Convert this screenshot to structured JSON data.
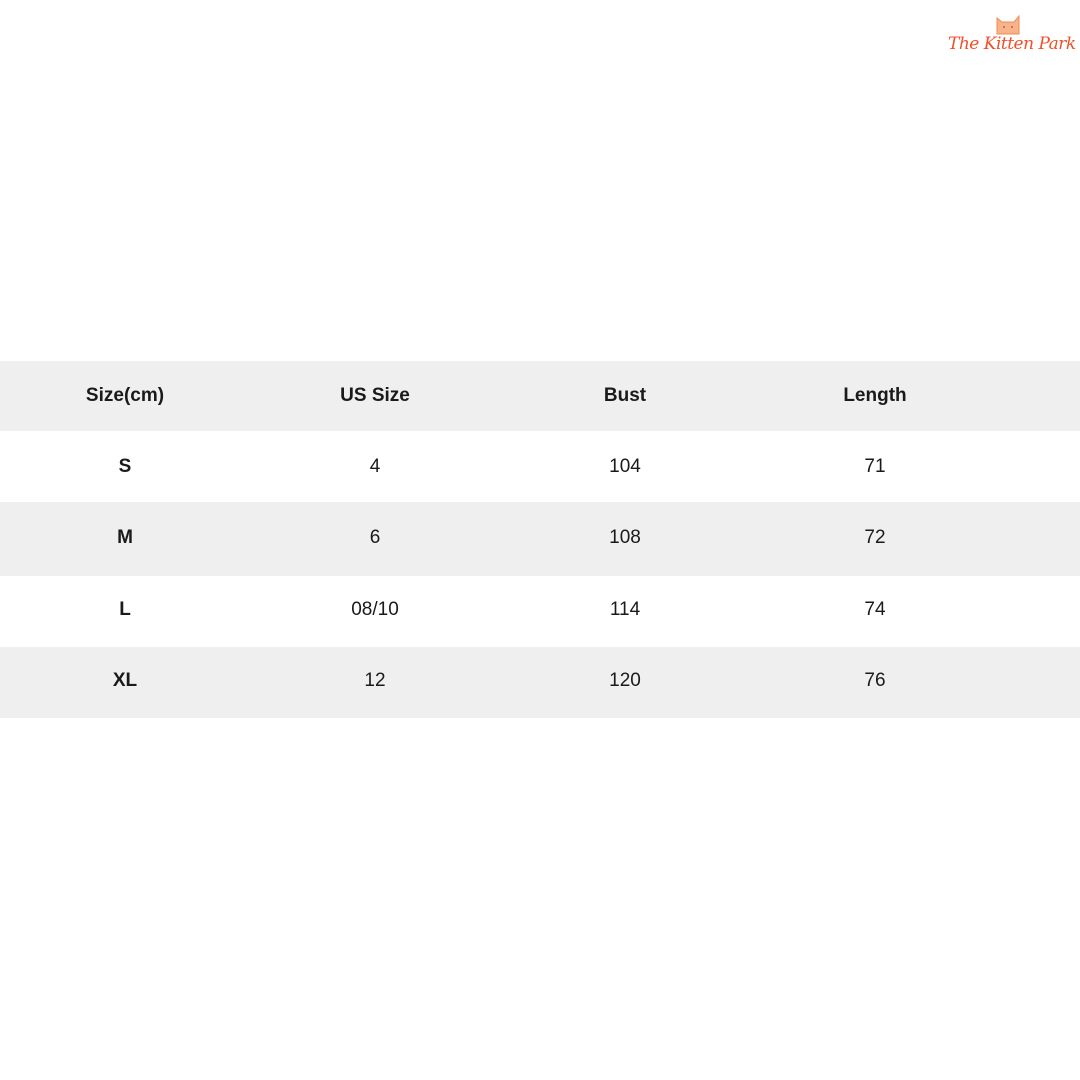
{
  "logo": {
    "text": "The Kitten Park",
    "color": "#f0502a"
  },
  "table": {
    "headers": [
      "Size(cm)",
      "US Size",
      "Bust",
      "Length"
    ],
    "rows": [
      [
        "S",
        "4",
        "104",
        "71"
      ],
      [
        "M",
        "6",
        "108",
        "72"
      ],
      [
        "L",
        "08/10",
        "114",
        "74"
      ],
      [
        "XL",
        "12",
        "120",
        "76"
      ]
    ],
    "stripe_color": "#efefef"
  }
}
